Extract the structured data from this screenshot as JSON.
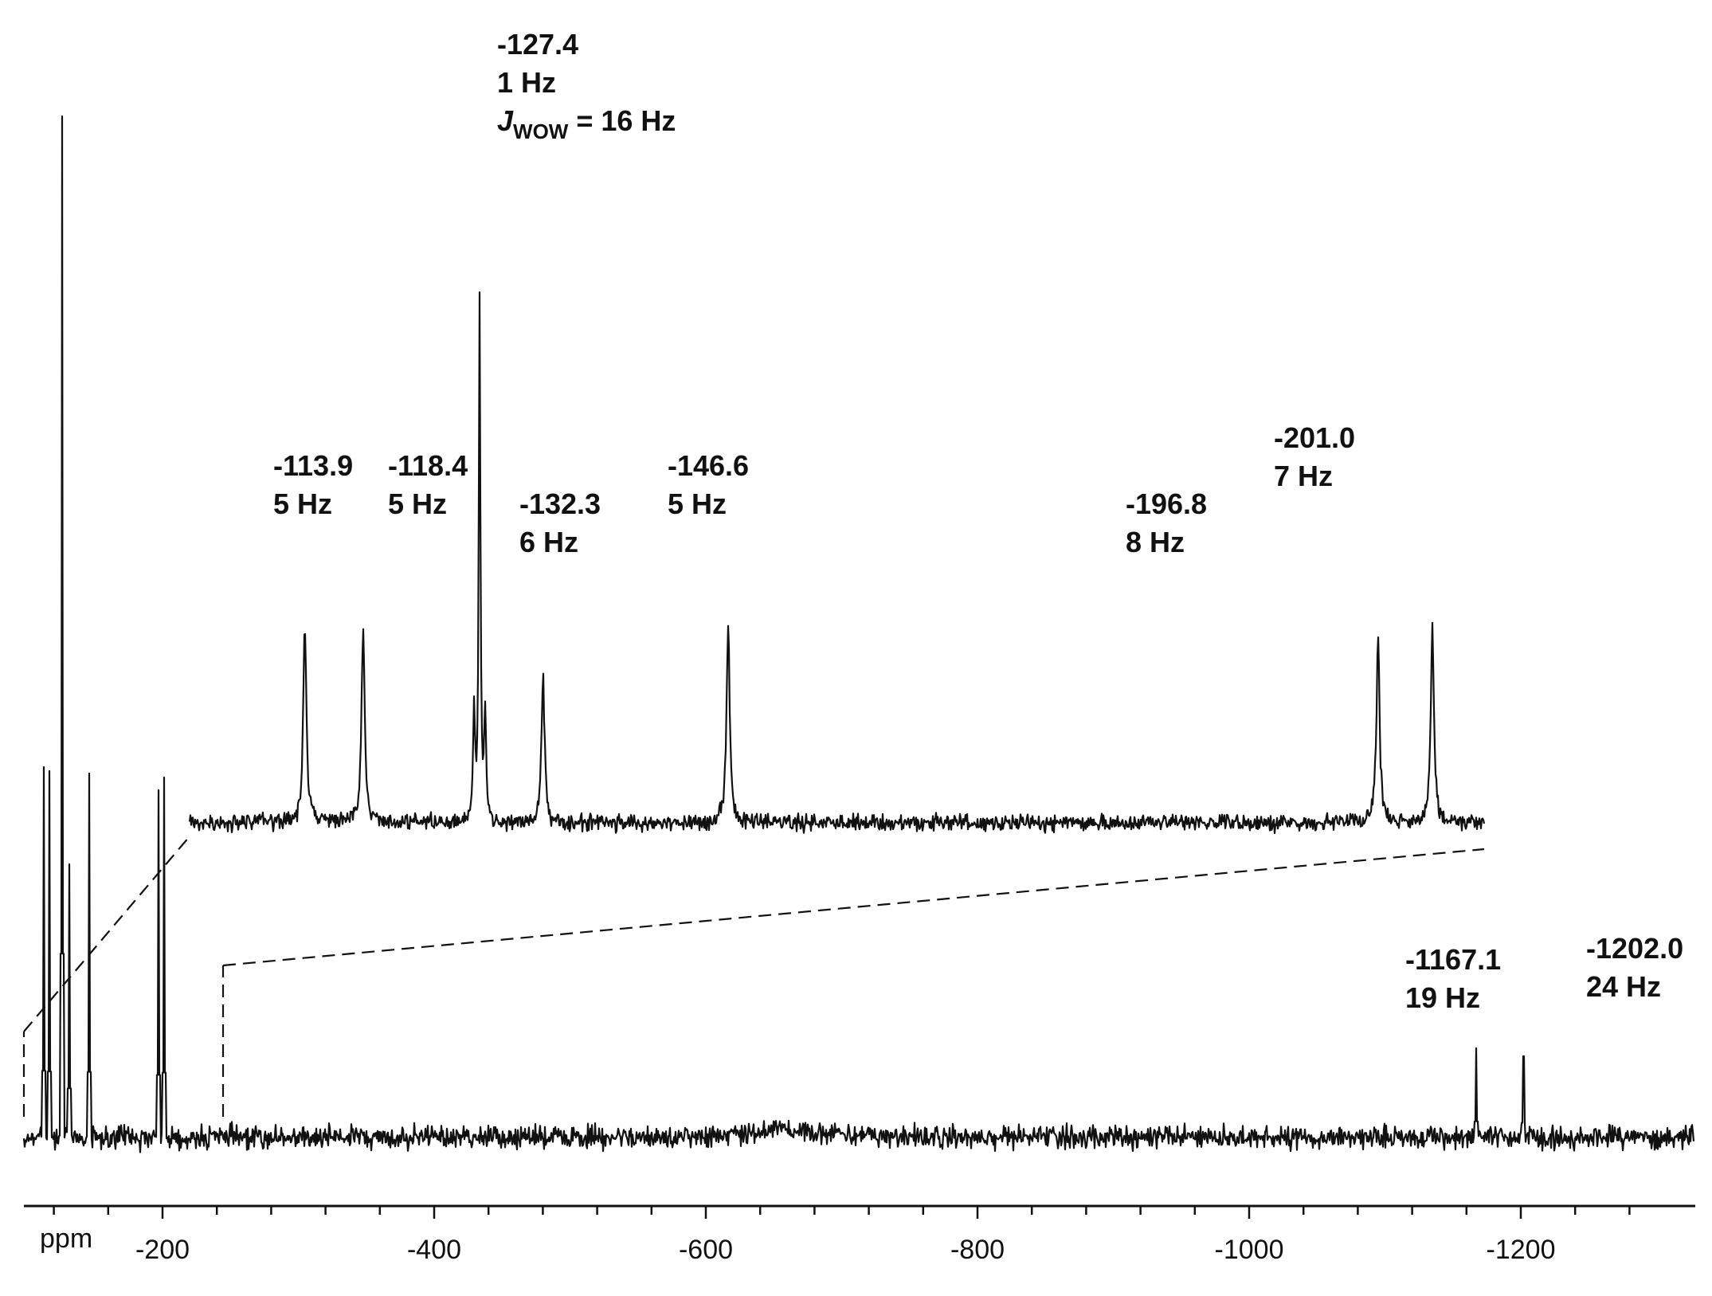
{
  "chart_data": {
    "type": "line",
    "title": "",
    "xlabel": "ppm",
    "ylabel": "",
    "xlim": [
      20,
      -1300
    ],
    "x_reversed": true,
    "grid": false,
    "ticks": {
      "major": [
        -200,
        -400,
        -600,
        -800,
        -1000,
        -1200
      ],
      "major_labels": [
        "-200",
        "-400",
        "-600",
        "-800",
        "-1000",
        "-1200"
      ],
      "minor_step": 40
    },
    "color": "#111111",
    "series": [
      {
        "role": "full-spectrum",
        "peaks_ppm": [
          -113.9,
          -118.4,
          -127.4,
          -132.3,
          -146.6,
          -196.8,
          -201.0,
          -1167.1,
          -1202.0
        ],
        "annotated_peaks": [
          {
            "ppm": -1167.1,
            "label_ppm": "-1167.1",
            "label_width": "19 Hz"
          },
          {
            "ppm": -1202.0,
            "label_ppm": "-1202.0",
            "label_width": "24 Hz"
          }
        ]
      },
      {
        "role": "expansion-inset",
        "range_ppm": [
          -105,
          -205
        ],
        "annotated_peaks": [
          {
            "ppm": -113.9,
            "label_ppm": "-113.9",
            "label_width": "5 Hz",
            "rel_height": 0.78
          },
          {
            "ppm": -118.4,
            "label_ppm": "-118.4",
            "label_width": "5 Hz",
            "rel_height": 0.77
          },
          {
            "ppm": -127.4,
            "label_ppm": "-127.4",
            "label_width": "1 Hz",
            "j_symbol": "J",
            "j_sub": "WOW",
            "j_value": " = 16 Hz",
            "rel_height": 2.05
          },
          {
            "ppm": -132.3,
            "label_ppm": "-132.3",
            "label_width": "6 Hz",
            "rel_height": 0.57
          },
          {
            "ppm": -146.6,
            "label_ppm": "-146.6",
            "label_width": "5 Hz",
            "rel_height": 0.76
          },
          {
            "ppm": -196.8,
            "label_ppm": "-196.8",
            "label_width": "8 Hz",
            "rel_height": 0.73
          },
          {
            "ppm": -201.0,
            "label_ppm": "-201.0",
            "label_width": "7 Hz",
            "rel_height": 0.76
          }
        ]
      }
    ]
  }
}
